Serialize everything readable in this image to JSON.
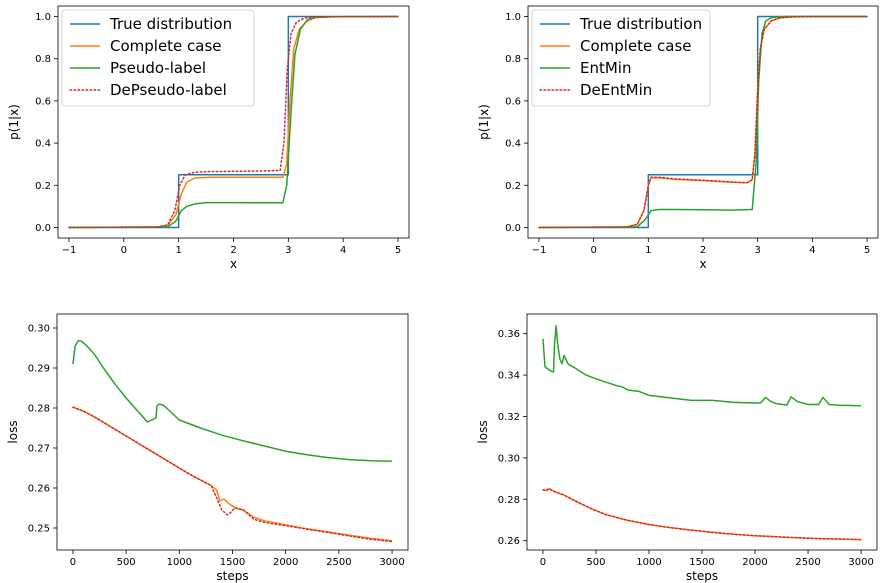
{
  "chart_data": [
    {
      "type": "line",
      "xlabel": "x",
      "ylabel": "p(1|x)",
      "xlim": [
        -1.2,
        5.2
      ],
      "ylim": [
        -0.05,
        1.05
      ],
      "xticks": [
        -1,
        0,
        1,
        2,
        3,
        4,
        5
      ],
      "yticks": [
        0.0,
        0.2,
        0.4,
        0.6,
        0.8,
        1.0
      ],
      "legend": "upper-left",
      "series": [
        {
          "name": "True distribution",
          "color": "#1f77b4",
          "style": "solid",
          "x": [
            -1,
            1,
            1,
            3,
            3,
            5
          ],
          "y": [
            0,
            0,
            0.25,
            0.25,
            1,
            1
          ]
        },
        {
          "name": "Complete case",
          "color": "#ff7f0e",
          "style": "solid",
          "x": [
            -1,
            0.6,
            0.8,
            0.95,
            1.05,
            1.15,
            1.3,
            1.6,
            2.0,
            2.5,
            2.9,
            2.97,
            3.03,
            3.1,
            3.2,
            3.35,
            3.5,
            3.8,
            5
          ],
          "y": [
            0,
            0.002,
            0.01,
            0.06,
            0.16,
            0.215,
            0.235,
            0.238,
            0.238,
            0.238,
            0.238,
            0.3,
            0.6,
            0.85,
            0.94,
            0.98,
            0.995,
            0.999,
            1
          ]
        },
        {
          "name": "Pseudo-label",
          "color": "#2ca02c",
          "style": "solid",
          "x": [
            -1,
            0.8,
            0.95,
            1.05,
            1.15,
            1.3,
            1.5,
            2.0,
            2.5,
            2.9,
            2.97,
            3.05,
            3.12,
            3.22,
            3.35,
            3.5,
            3.8,
            5
          ],
          "y": [
            0,
            0.003,
            0.03,
            0.08,
            0.1,
            0.112,
            0.118,
            0.118,
            0.117,
            0.117,
            0.2,
            0.55,
            0.82,
            0.94,
            0.985,
            0.996,
            0.999,
            1
          ]
        },
        {
          "name": "DePseudo-label",
          "color": "#d62728",
          "style": "dotted",
          "x": [
            -1,
            0.6,
            0.8,
            0.93,
            1.02,
            1.12,
            1.3,
            1.6,
            2.0,
            2.5,
            2.85,
            2.92,
            2.98,
            3.05,
            3.15,
            3.3,
            3.5,
            5
          ],
          "y": [
            0,
            0.002,
            0.012,
            0.08,
            0.2,
            0.25,
            0.262,
            0.265,
            0.266,
            0.268,
            0.27,
            0.4,
            0.75,
            0.92,
            0.975,
            0.993,
            0.999,
            1
          ]
        }
      ]
    },
    {
      "type": "line",
      "xlabel": "x",
      "ylabel": "p(1|x)",
      "xlim": [
        -1.2,
        5.2
      ],
      "ylim": [
        -0.05,
        1.05
      ],
      "xticks": [
        -1,
        0,
        1,
        2,
        3,
        4,
        5
      ],
      "yticks": [
        0.0,
        0.2,
        0.4,
        0.6,
        0.8,
        1.0
      ],
      "legend": "upper-left",
      "series": [
        {
          "name": "True distribution",
          "color": "#1f77b4",
          "style": "solid",
          "x": [
            -1,
            1,
            1,
            3,
            3,
            5
          ],
          "y": [
            0,
            0,
            0.25,
            0.25,
            1,
            1
          ]
        },
        {
          "name": "Complete case",
          "color": "#ff7f0e",
          "style": "solid",
          "x": [
            -1,
            0.6,
            0.8,
            0.92,
            1.0,
            1.05,
            1.2,
            1.5,
            2.0,
            2.5,
            2.8,
            2.9,
            2.95,
            3.0,
            3.05,
            3.12,
            3.25,
            3.4,
            3.6,
            4.0,
            5
          ],
          "y": [
            0,
            0.002,
            0.015,
            0.08,
            0.2,
            0.235,
            0.235,
            0.228,
            0.222,
            0.215,
            0.212,
            0.225,
            0.35,
            0.65,
            0.85,
            0.94,
            0.98,
            0.993,
            0.998,
            1,
            1
          ]
        },
        {
          "name": "EntMin",
          "color": "#2ca02c",
          "style": "solid",
          "x": [
            -1,
            0.8,
            0.95,
            1.05,
            1.2,
            1.5,
            2.0,
            2.5,
            2.9,
            2.97,
            3.02,
            3.08,
            3.15,
            3.25,
            3.4,
            3.6,
            5
          ],
          "y": [
            0,
            0.003,
            0.04,
            0.08,
            0.085,
            0.085,
            0.084,
            0.082,
            0.085,
            0.3,
            0.7,
            0.92,
            0.98,
            0.995,
            0.999,
            1,
            1
          ]
        },
        {
          "name": "DeEntMin",
          "color": "#d62728",
          "style": "dotted",
          "x": [
            -1,
            0.6,
            0.8,
            0.92,
            1.0,
            1.05,
            1.2,
            1.5,
            2.0,
            2.5,
            2.8,
            2.9,
            2.95,
            3.0,
            3.05,
            3.12,
            3.25,
            3.4,
            3.6,
            4.0,
            5
          ],
          "y": [
            0,
            0.002,
            0.015,
            0.08,
            0.2,
            0.238,
            0.238,
            0.23,
            0.224,
            0.216,
            0.212,
            0.226,
            0.35,
            0.65,
            0.85,
            0.94,
            0.98,
            0.993,
            0.998,
            1,
            1
          ]
        }
      ]
    },
    {
      "type": "line",
      "xlabel": "steps",
      "ylabel": "loss",
      "xlim": [
        -150,
        3150
      ],
      "ylim": [
        0.2445,
        0.3035
      ],
      "xticks": [
        0,
        500,
        1000,
        1500,
        2000,
        2500,
        3000
      ],
      "yticks": [
        0.25,
        0.26,
        0.27,
        0.28,
        0.29,
        0.3
      ],
      "series": [
        {
          "color": "#2ca02c",
          "style": "solid",
          "x": [
            0,
            20,
            50,
            80,
            120,
            200,
            300,
            400,
            500,
            600,
            700,
            780,
            790,
            810,
            850,
            900,
            1000,
            1200,
            1400,
            1600,
            1800,
            2000,
            2200,
            2400,
            2600,
            2800,
            3000
          ],
          "y": [
            0.291,
            0.2955,
            0.2968,
            0.2967,
            0.2958,
            0.2935,
            0.2895,
            0.2858,
            0.2825,
            0.2795,
            0.2765,
            0.2775,
            0.2805,
            0.281,
            0.2807,
            0.2795,
            0.277,
            0.275,
            0.2732,
            0.2718,
            0.2705,
            0.2692,
            0.2683,
            0.2676,
            0.2671,
            0.2668,
            0.2667
          ]
        },
        {
          "color": "#ff7f0e",
          "style": "solid",
          "x": [
            0,
            100,
            200,
            300,
            400,
            500,
            600,
            700,
            800,
            900,
            1000,
            1100,
            1200,
            1300,
            1350,
            1380,
            1420,
            1480,
            1550,
            1600,
            1700,
            1800,
            2000,
            2200,
            2400,
            2600,
            2800,
            3000
          ],
          "y": [
            0.2802,
            0.2792,
            0.2778,
            0.2762,
            0.2746,
            0.273,
            0.2714,
            0.2698,
            0.2682,
            0.2666,
            0.265,
            0.2634,
            0.262,
            0.2606,
            0.2595,
            0.2568,
            0.2572,
            0.2558,
            0.2548,
            0.2545,
            0.2527,
            0.2518,
            0.2508,
            0.2498,
            0.249,
            0.2482,
            0.2474,
            0.2468
          ]
        },
        {
          "color": "#d62728",
          "style": "dotted",
          "x": [
            0,
            100,
            200,
            300,
            400,
            500,
            600,
            700,
            800,
            900,
            1000,
            1100,
            1200,
            1300,
            1400,
            1450,
            1480,
            1520,
            1560,
            1600,
            1700,
            1800,
            2000,
            2200,
            2400,
            2600,
            2800,
            3000
          ],
          "y": [
            0.2802,
            0.2792,
            0.2778,
            0.2762,
            0.2746,
            0.273,
            0.2714,
            0.2698,
            0.2682,
            0.2666,
            0.265,
            0.2634,
            0.262,
            0.2606,
            0.2545,
            0.2533,
            0.2538,
            0.255,
            0.2548,
            0.2546,
            0.2522,
            0.2514,
            0.2506,
            0.2497,
            0.2489,
            0.248,
            0.2472,
            0.2466
          ]
        }
      ]
    },
    {
      "type": "line",
      "xlabel": "steps",
      "ylabel": "loss",
      "xlim": [
        -150,
        3150
      ],
      "ylim": [
        0.2555,
        0.3695
      ],
      "xticks": [
        0,
        500,
        1000,
        1500,
        2000,
        2500,
        3000
      ],
      "yticks": [
        0.26,
        0.28,
        0.3,
        0.32,
        0.34,
        0.36
      ],
      "series": [
        {
          "color": "#2ca02c",
          "style": "solid",
          "x": [
            0,
            20,
            50,
            80,
            100,
            110,
            125,
            140,
            160,
            180,
            200,
            215,
            240,
            300,
            400,
            500,
            600,
            700,
            750,
            800,
            900,
            1000,
            1200,
            1400,
            1600,
            1800,
            2000,
            2050,
            2100,
            2150,
            2200,
            2300,
            2340,
            2400,
            2500,
            2600,
            2640,
            2700,
            2800,
            3000
          ],
          "y": [
            0.3575,
            0.344,
            0.3428,
            0.3418,
            0.3415,
            0.3555,
            0.3638,
            0.3545,
            0.3478,
            0.3455,
            0.3495,
            0.3478,
            0.3452,
            0.3435,
            0.3402,
            0.3382,
            0.3365,
            0.3348,
            0.3342,
            0.3328,
            0.3322,
            0.3302,
            0.329,
            0.3278,
            0.3278,
            0.3268,
            0.3265,
            0.3265,
            0.3292,
            0.3272,
            0.3262,
            0.3255,
            0.3295,
            0.3272,
            0.3258,
            0.3258,
            0.3292,
            0.3258,
            0.3254,
            0.3252
          ]
        },
        {
          "color": "#ff7f0e",
          "style": "solid",
          "x": [
            0,
            30,
            60,
            90,
            120,
            200,
            300,
            400,
            500,
            600,
            800,
            1000,
            1200,
            1400,
            1600,
            1800,
            2000,
            2200,
            2400,
            2600,
            2800,
            3000
          ],
          "y": [
            0.2845,
            0.2842,
            0.2852,
            0.2843,
            0.2835,
            0.282,
            0.2793,
            0.2768,
            0.2745,
            0.2725,
            0.2698,
            0.2678,
            0.2663,
            0.2651,
            0.264,
            0.2631,
            0.2624,
            0.2619,
            0.2614,
            0.261,
            0.2608,
            0.2605
          ]
        },
        {
          "color": "#d62728",
          "style": "dotted",
          "x": [
            0,
            30,
            60,
            90,
            120,
            200,
            300,
            400,
            500,
            600,
            800,
            1000,
            1200,
            1400,
            1600,
            1800,
            2000,
            2200,
            2400,
            2600,
            2800,
            3000
          ],
          "y": [
            0.2845,
            0.2844,
            0.285,
            0.2841,
            0.2835,
            0.282,
            0.2793,
            0.2768,
            0.2745,
            0.2725,
            0.2698,
            0.2678,
            0.2663,
            0.2651,
            0.264,
            0.2631,
            0.2624,
            0.2619,
            0.2614,
            0.261,
            0.2608,
            0.2605
          ]
        }
      ]
    }
  ]
}
